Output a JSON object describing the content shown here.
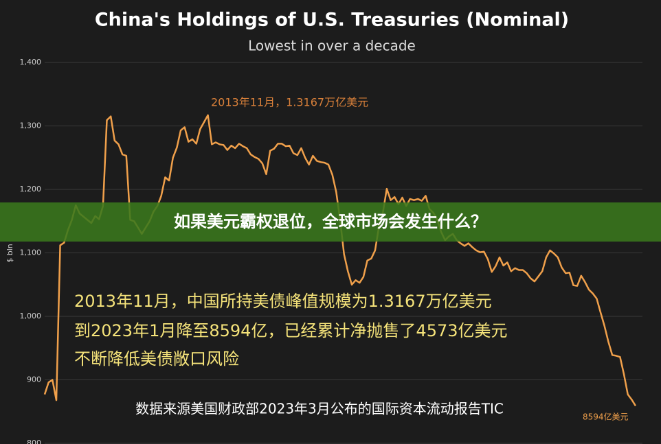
{
  "chart_data": {
    "type": "line",
    "title": "China's Holdings of U.S. Treasuries (Nominal)",
    "subtitle": "Lowest in over a decade",
    "y_label": "$ bln",
    "ylim": [
      800,
      1400
    ],
    "yticks": [
      800,
      900,
      {
        "value": 1000,
        "label": "1,000"
      },
      {
        "value": 1100,
        "label": "1,100"
      },
      {
        "value": 1200,
        "label": "1,200"
      },
      {
        "value": 1300,
        "label": "1,300"
      },
      {
        "value": 1400,
        "label": "1,400"
      }
    ],
    "grid": true,
    "color": "#f0a04b",
    "values": [
      877,
      896,
      900,
      868,
      1112,
      1116,
      1136,
      1152,
      1175,
      1162,
      1157,
      1152,
      1147,
      1158,
      1153,
      1174,
      1309,
      1315,
      1277,
      1271,
      1255,
      1253,
      1152,
      1150,
      1140,
      1130,
      1140,
      1150,
      1165,
      1174,
      1190,
      1219,
      1214,
      1250,
      1266,
      1293,
      1298,
      1275,
      1279,
      1272,
      1295,
      1306,
      1317,
      1271,
      1274,
      1271,
      1270,
      1262,
      1269,
      1265,
      1272,
      1268,
      1265,
      1255,
      1251,
      1248,
      1241,
      1224,
      1261,
      1264,
      1272,
      1272,
      1268,
      1269,
      1257,
      1254,
      1265,
      1250,
      1239,
      1253,
      1245,
      1243,
      1242,
      1239,
      1223,
      1196,
      1152,
      1098,
      1071,
      1050,
      1057,
      1053,
      1062,
      1088,
      1091,
      1104,
      1142,
      1163,
      1201,
      1183,
      1188,
      1177,
      1187,
      1174,
      1185,
      1183,
      1185,
      1182,
      1190,
      1169,
      1163,
      1152,
      1133,
      1120,
      1126,
      1130,
      1120,
      1115,
      1111,
      1115,
      1109,
      1104,
      1101,
      1102,
      1090,
      1070,
      1079,
      1093,
      1080,
      1085,
      1071,
      1076,
      1073,
      1073,
      1068,
      1060,
      1055,
      1063,
      1071,
      1093,
      1104,
      1099,
      1093,
      1077,
      1068,
      1069,
      1049,
      1048,
      1064,
      1054,
      1042,
      1036,
      1028,
      1006,
      985,
      960,
      939,
      938,
      936,
      909,
      877,
      869,
      859
    ],
    "annotations": [
      "2013年11月，1.3167万亿美元",
      "8594亿美元"
    ]
  },
  "overlay": {
    "banner": "如果美元霸权退位，全球市场会发生什么？",
    "caption_lines": [
      "2013年11月，中国所持美债峰值规模为1.3167万亿美元",
      "到2023年1月降至8594亿，已经累计净抛售了4573亿美元",
      "不断降低美债敞口风险"
    ],
    "source": "数据来源美国财政部2023年3月公布的国际资本流动报告TIC"
  }
}
